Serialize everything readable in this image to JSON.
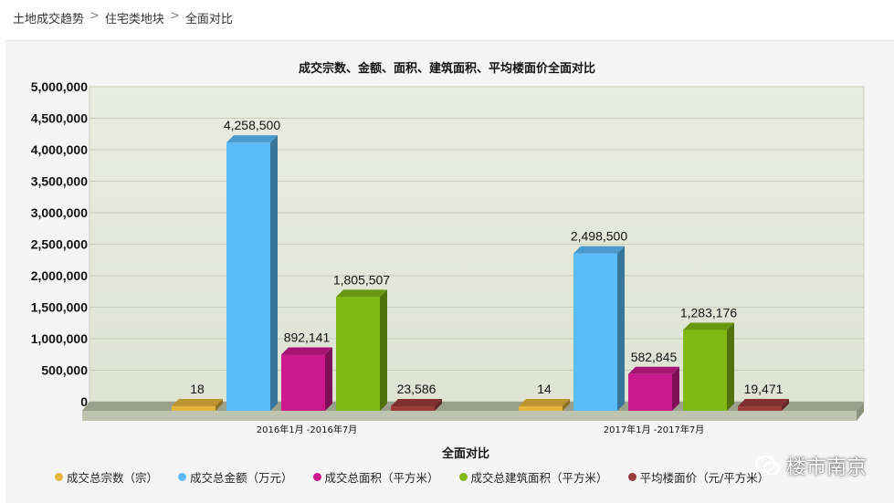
{
  "breadcrumb": {
    "items": [
      "土地成交趋势",
      "住宅类地块",
      "全面对比"
    ],
    "separator": ">"
  },
  "chart_data": {
    "type": "bar",
    "title": "成交宗数、金额、面积、建筑面积、平均楼面价全面对比",
    "xlabel": "全面对比",
    "ylabel": "",
    "ylim": [
      0,
      5000000
    ],
    "yticks": [
      "0",
      "500,000",
      "1,000,000",
      "1,500,000",
      "2,000,000",
      "2,500,000",
      "3,000,000",
      "3,500,000",
      "4,000,000",
      "4,500,000",
      "5,000,000"
    ],
    "grid": true,
    "legend_position": "bottom",
    "categories": [
      "2016年1月 -2016年7月",
      "2017年1月 -2017年7月"
    ],
    "series": [
      {
        "name": "成交总宗数（宗）",
        "values": [
          18,
          14
        ],
        "labels": [
          "18",
          "14"
        ],
        "color": "#e5b43b"
      },
      {
        "name": "成交总金额（万元）",
        "values": [
          4258500,
          2498500
        ],
        "labels": [
          "4,258,500",
          "2,498,500"
        ],
        "color": "#5bbcf9"
      },
      {
        "name": "成交总面积（平方米）",
        "values": [
          892141,
          582845
        ],
        "labels": [
          "892,141",
          "582,845"
        ],
        "color": "#cc1a8e"
      },
      {
        "name": "成交总建筑面积（平方米）",
        "values": [
          1805507,
          1283176
        ],
        "labels": [
          "1,805,507",
          "1,283,176"
        ],
        "color": "#80b814"
      },
      {
        "name": "平均楼面价（元/平方米）",
        "values": [
          23586,
          19471
        ],
        "labels": [
          "23,586",
          "19,471"
        ],
        "color": "#9b3b3b"
      }
    ]
  },
  "watermark": {
    "text": "楼市南京",
    "icon": "wechat-icon"
  }
}
